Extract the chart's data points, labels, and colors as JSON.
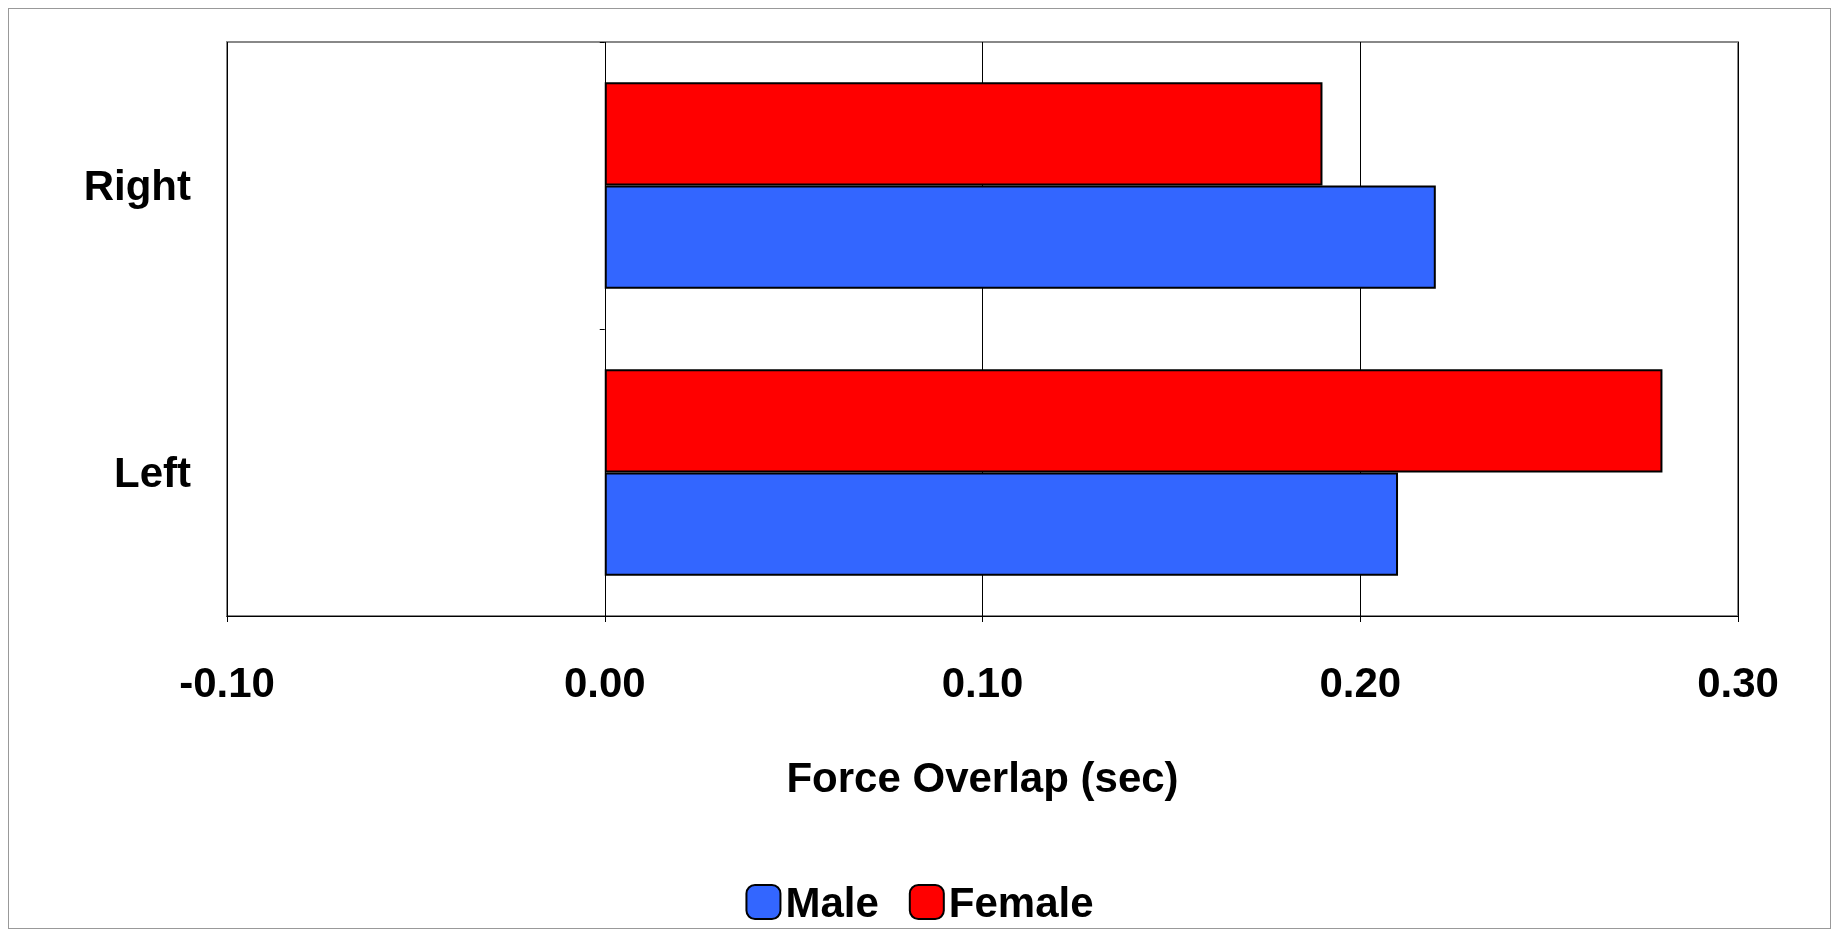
{
  "chart_data": {
    "type": "bar",
    "orientation": "horizontal",
    "xlabel": "Force Overlap (sec)",
    "categories": [
      "Right",
      "Left"
    ],
    "series": [
      {
        "name": "Male",
        "color": "#3366ff",
        "values": [
          0.22,
          0.21
        ]
      },
      {
        "name": "Female",
        "color": "#ff0000",
        "values": [
          0.19,
          0.28
        ]
      }
    ],
    "xlim": [
      -0.1,
      0.3
    ],
    "xticks": [
      {
        "value": -0.1,
        "label": "-0.10"
      },
      {
        "value": 0,
        "label": "0.00"
      },
      {
        "value": 0.1,
        "label": "0.10"
      },
      {
        "value": 0.2,
        "label": "0.20"
      },
      {
        "value": 0.3,
        "label": "0.30"
      }
    ],
    "grid": "x",
    "legend": "bottom"
  }
}
